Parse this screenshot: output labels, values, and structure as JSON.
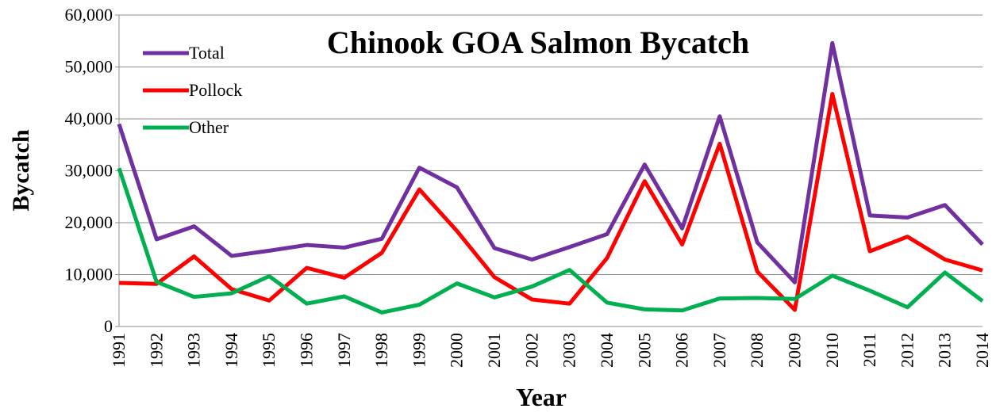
{
  "chart_data": {
    "type": "line",
    "title": "Chinook GOA Salmon Bycatch",
    "x_label": "Year",
    "y_label": "Bycatch",
    "categories": [
      "1991",
      "1992",
      "1993",
      "1994",
      "1995",
      "1996",
      "1997",
      "1998",
      "1999",
      "2000",
      "2001",
      "2002",
      "2003",
      "2004",
      "2005",
      "2006",
      "2007",
      "2008",
      "2009",
      "2010",
      "2011",
      "2012",
      "2013",
      "2014"
    ],
    "series": [
      {
        "name": "Total",
        "color": "#7030a0",
        "values": [
          39000,
          16800,
          19300,
          13600,
          14600,
          15700,
          15200,
          16900,
          30600,
          26800,
          15100,
          12900,
          15300,
          17800,
          31200,
          18900,
          40500,
          16200,
          8500,
          54600,
          21400,
          21000,
          23400,
          15800
        ]
      },
      {
        "name": "Pollock",
        "color": "#ff0000",
        "values": [
          8400,
          8200,
          13500,
          7200,
          5000,
          11300,
          9400,
          14200,
          26400,
          18400,
          9500,
          5200,
          4400,
          13200,
          28000,
          15800,
          35200,
          10600,
          3200,
          44800,
          14500,
          17300,
          12900,
          10800
        ]
      },
      {
        "name": "Other",
        "color": "#00b050",
        "values": [
          30500,
          8600,
          5700,
          6400,
          9700,
          4400,
          5800,
          2700,
          4200,
          8300,
          5600,
          7700,
          10900,
          4600,
          3300,
          3100,
          5400,
          5500,
          5300,
          9800,
          6900,
          3700,
          10400,
          4900
        ]
      }
    ],
    "ylim": [
      0,
      60000
    ],
    "yticks": [
      0,
      {
        "value": 10000,
        "label": "10,000"
      },
      {
        "value": 20000,
        "label": "20,000"
      },
      {
        "value": 30000,
        "label": "30,000"
      },
      {
        "value": 40000,
        "label": "40,000"
      },
      {
        "value": 50000,
        "label": "50,000"
      },
      {
        "value": 60000,
        "label": "60,000"
      }
    ],
    "grid": true,
    "legend": "upper left"
  }
}
